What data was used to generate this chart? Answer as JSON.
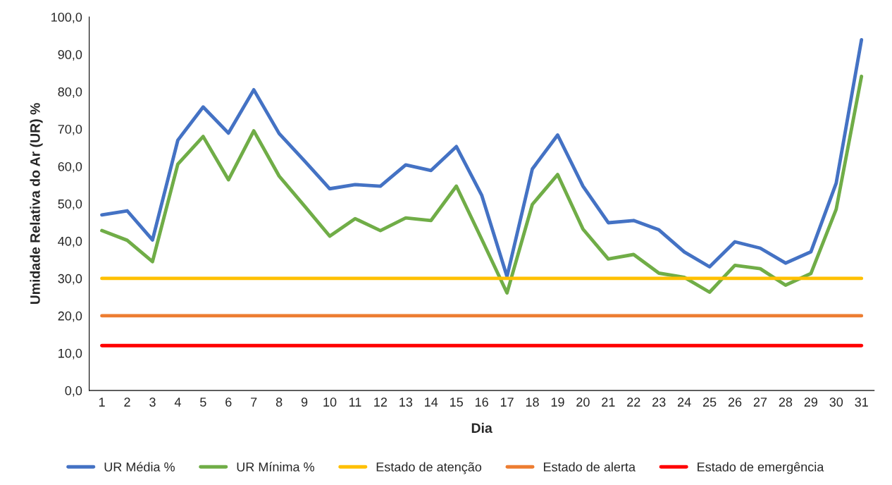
{
  "chart_data": {
    "type": "line",
    "xlabel": "Dia",
    "ylabel": "Umidade Relativa do Ar (UR) %",
    "categories": [
      "1",
      "2",
      "3",
      "4",
      "5",
      "6",
      "7",
      "8",
      "9",
      "10",
      "11",
      "12",
      "13",
      "14",
      "15",
      "16",
      "17",
      "18",
      "19",
      "20",
      "21",
      "22",
      "23",
      "24",
      "25",
      "26",
      "27",
      "28",
      "29",
      "30",
      "31"
    ],
    "series": [
      {
        "name": "UR Média %",
        "color": "#4472c4",
        "values": [
          47.0,
          48.1,
          40.3,
          67.0,
          75.9,
          68.9,
          80.5,
          68.8,
          61.5,
          54.0,
          55.1,
          54.7,
          60.4,
          58.9,
          65.3,
          52.3,
          30.5,
          59.3,
          68.4,
          54.7,
          44.9,
          45.5,
          43.0,
          37.1,
          33.1,
          39.8,
          38.1,
          34.1,
          37.1,
          55.5,
          93.9
        ]
      },
      {
        "name": "UR Mínima %",
        "color": "#70ad47",
        "values": [
          42.8,
          40.2,
          34.5,
          60.6,
          68.0,
          56.4,
          69.5,
          57.4,
          49.4,
          41.3,
          46.0,
          42.8,
          46.2,
          45.5,
          54.7,
          40.5,
          26.1,
          49.8,
          57.8,
          43.2,
          35.2,
          36.4,
          31.4,
          30.3,
          26.3,
          33.5,
          32.6,
          28.2,
          31.3,
          48.5,
          84.1
        ]
      },
      {
        "name": "Estado de atenção",
        "color": "#ffc000",
        "values": [
          30,
          30,
          30,
          30,
          30,
          30,
          30,
          30,
          30,
          30,
          30,
          30,
          30,
          30,
          30,
          30,
          30,
          30,
          30,
          30,
          30,
          30,
          30,
          30,
          30,
          30,
          30,
          30,
          30,
          30,
          30
        ]
      },
      {
        "name": "Estado de alerta",
        "color": "#ed7d31",
        "values": [
          20,
          20,
          20,
          20,
          20,
          20,
          20,
          20,
          20,
          20,
          20,
          20,
          20,
          20,
          20,
          20,
          20,
          20,
          20,
          20,
          20,
          20,
          20,
          20,
          20,
          20,
          20,
          20,
          20,
          20,
          20
        ]
      },
      {
        "name": "Estado de emergência",
        "color": "#ff0000",
        "values": [
          12,
          12,
          12,
          12,
          12,
          12,
          12,
          12,
          12,
          12,
          12,
          12,
          12,
          12,
          12,
          12,
          12,
          12,
          12,
          12,
          12,
          12,
          12,
          12,
          12,
          12,
          12,
          12,
          12,
          12,
          12
        ]
      }
    ],
    "ylim": [
      0,
      100
    ],
    "yticks": [
      {
        "value": 0,
        "label": "0,0"
      },
      {
        "value": 10,
        "label": "10,0"
      },
      {
        "value": 20,
        "label": "20,0"
      },
      {
        "value": 30,
        "label": "30,0"
      },
      {
        "value": 40,
        "label": "40,0"
      },
      {
        "value": 50,
        "label": "50,0"
      },
      {
        "value": 60,
        "label": "60,0"
      },
      {
        "value": 70,
        "label": "70,0"
      },
      {
        "value": 80,
        "label": "80,0"
      },
      {
        "value": 90,
        "label": "90,0"
      },
      {
        "value": 100,
        "label": "100,0"
      }
    ],
    "grid": false,
    "legend": "bottom",
    "marker": "none",
    "line_style": "solid"
  }
}
